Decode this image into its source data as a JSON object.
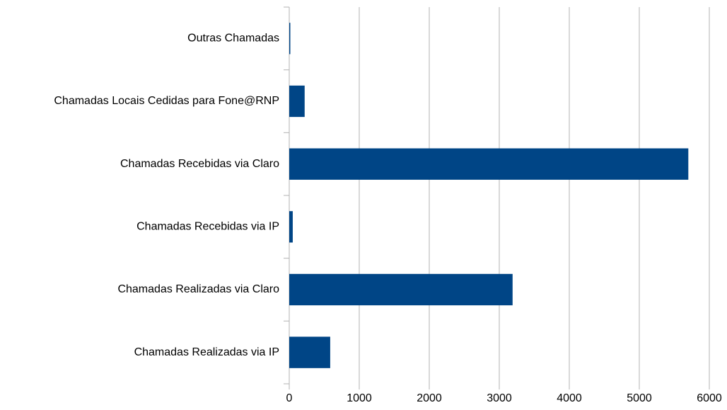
{
  "chart_data": {
    "type": "hbar",
    "categories": [
      "Outras Chamadas",
      "Chamadas Locais Cedidas para Fone@RNP",
      "Chamadas Recebidas via Claro",
      "Chamadas Recebidas via IP",
      "Chamadas Realizadas via Claro",
      "Chamadas Realizadas via IP"
    ],
    "values": [
      15,
      220,
      5700,
      50,
      3190,
      585
    ],
    "color": "#004586",
    "xlim": [
      0,
      6000
    ],
    "xticks": [
      0,
      1000,
      2000,
      3000,
      4000,
      5000,
      6000
    ],
    "grid": true
  }
}
